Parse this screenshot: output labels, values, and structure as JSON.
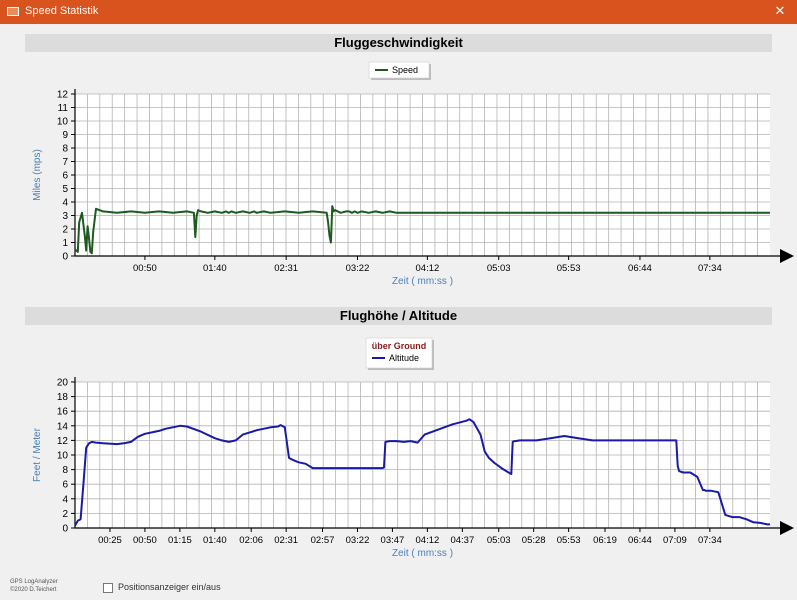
{
  "window": {
    "title": "Speed Statistik",
    "close_glyph": "✕",
    "icon": "window-icon"
  },
  "footer": {
    "brand": "GPS LogAnalyzer",
    "copyright": "©2020 D.Teichert",
    "checkbox_label": "Positionsanzeiger ein/aus",
    "checkbox_checked": false
  },
  "chart_data": [
    {
      "type": "line",
      "title": "Fluggeschwindigkeit",
      "xlabel": "Zeit ( mm:ss )",
      "ylabel": "Miles (mps)",
      "ylim": [
        0,
        12
      ],
      "yticks": [
        0,
        1,
        2,
        3,
        4,
        5,
        6,
        7,
        8,
        9,
        10,
        11,
        12
      ],
      "xlim": [
        0,
        497
      ],
      "xtick_labels": [
        {
          "t": 50,
          "label": "00:50"
        },
        {
          "t": 100,
          "label": "01:40"
        },
        {
          "t": 151,
          "label": "02:31"
        },
        {
          "t": 202,
          "label": "03:22"
        },
        {
          "t": 252,
          "label": "04:12"
        },
        {
          "t": 303,
          "label": "05:03"
        },
        {
          "t": 353,
          "label": "05:53"
        },
        {
          "t": 404,
          "label": "06:44"
        },
        {
          "t": 454,
          "label": "07:34"
        }
      ],
      "grid": true,
      "legend": {
        "placement": "top-center",
        "items": [
          "Speed"
        ]
      },
      "series": [
        {
          "name": "Speed",
          "color": "#1e5a1e",
          "x": [
            0,
            2,
            3,
            5,
            7,
            8,
            9,
            10,
            11,
            12,
            13,
            15,
            20,
            30,
            40,
            50,
            60,
            70,
            80,
            85,
            86,
            87,
            88,
            90,
            95,
            100,
            105,
            108,
            110,
            112,
            115,
            120,
            125,
            128,
            130,
            135,
            140,
            150,
            160,
            170,
            180,
            181,
            182,
            183,
            184,
            185,
            186,
            190,
            194,
            196,
            198,
            200,
            202,
            205,
            210,
            215,
            220,
            225,
            230,
            240,
            250,
            260,
            270,
            280,
            290,
            300,
            301,
            302,
            303,
            304,
            305,
            306,
            308,
            310,
            313,
            314,
            315,
            316,
            317,
            318,
            320,
            325,
            330,
            335,
            340,
            345,
            350,
            355,
            360,
            365,
            370,
            375,
            380,
            385,
            390,
            395,
            400,
            402,
            404,
            406,
            408,
            410,
            415,
            420,
            425,
            430,
            432,
            434,
            436,
            438,
            440,
            442,
            444,
            446,
            448,
            450,
            452,
            454,
            456,
            458,
            460,
            462,
            464,
            466,
            468,
            470,
            475,
            480,
            485,
            490,
            495,
            497
          ],
          "y": [
            0.5,
            0.3,
            2.5,
            3.2,
            1.5,
            0.4,
            2.2,
            1.3,
            0.3,
            0.2,
            1.8,
            3.5,
            3.3,
            3.2,
            3.3,
            3.2,
            3.3,
            3.2,
            3.3,
            3.2,
            1.4,
            3.0,
            3.4,
            3.3,
            3.2,
            3.3,
            3.2,
            3.3,
            3.2,
            3.3,
            3.2,
            3.3,
            3.2,
            3.3,
            3.2,
            3.3,
            3.2,
            3.3,
            3.2,
            3.3,
            3.2,
            2.5,
            1.5,
            1.0,
            3.7,
            3.3,
            3.4,
            3.2,
            3.3,
            3.3,
            3.2,
            3.3,
            3.2,
            3.3,
            3.2,
            3.3,
            3.2,
            3.3,
            3.2,
            3.2,
            3.2,
            3.2,
            3.2,
            3.2,
            3.2,
            3.2,
            3.2,
            3.2,
            3.2,
            3.2,
            3.2,
            3.2,
            3.2,
            3.2,
            3.2,
            3.2,
            3.2,
            3.2,
            3.2,
            3.2,
            3.2,
            3.2,
            3.2,
            3.2,
            3.2,
            3.2,
            3.2,
            3.2,
            3.2,
            3.2,
            3.2,
            3.2,
            3.2,
            3.2,
            3.2,
            3.2,
            3.2,
            3.2,
            3.2,
            3.2,
            3.2,
            3.2,
            3.2,
            3.2,
            3.2,
            3.2,
            3.2,
            3.2,
            3.2,
            3.2,
            3.2,
            3.2,
            3.2,
            3.2,
            3.2,
            3.2,
            3.2,
            3.2,
            3.2,
            3.2,
            3.2,
            3.2,
            3.2,
            3.2,
            3.2,
            3.2,
            3.2,
            3.2,
            3.2,
            3.2,
            3.2,
            3.2
          ]
        }
      ]
    },
    {
      "type": "line",
      "title": "Flughöhe / Altitude",
      "xlabel": "Zeit ( mm:ss )",
      "ylabel": "Feet / Meter",
      "ylim": [
        0,
        20
      ],
      "yticks": [
        0,
        2,
        4,
        6,
        8,
        10,
        12,
        14,
        16,
        18,
        20
      ],
      "xlim": [
        0,
        497
      ],
      "xtick_labels": [
        {
          "t": 25,
          "label": "00:25"
        },
        {
          "t": 50,
          "label": "00:50"
        },
        {
          "t": 75,
          "label": "01:15"
        },
        {
          "t": 100,
          "label": "01:40"
        },
        {
          "t": 126,
          "label": "02:06"
        },
        {
          "t": 151,
          "label": "02:31"
        },
        {
          "t": 177,
          "label": "02:57"
        },
        {
          "t": 202,
          "label": "03:22"
        },
        {
          "t": 227,
          "label": "03:47"
        },
        {
          "t": 252,
          "label": "04:12"
        },
        {
          "t": 277,
          "label": "04:37"
        },
        {
          "t": 303,
          "label": "05:03"
        },
        {
          "t": 328,
          "label": "05:28"
        },
        {
          "t": 353,
          "label": "05:53"
        },
        {
          "t": 379,
          "label": "06:19"
        },
        {
          "t": 404,
          "label": "06:44"
        },
        {
          "t": 429,
          "label": "07:09"
        },
        {
          "t": 454,
          "label": "07:34"
        }
      ],
      "grid": true,
      "legend": {
        "placement": "top-center",
        "heading": "über Ground",
        "items": [
          "Altitude"
        ]
      },
      "series": [
        {
          "name": "Altitude",
          "color": "#1a1aa8",
          "x": [
            0,
            2,
            4,
            6,
            8,
            10,
            12,
            15,
            20,
            30,
            35,
            40,
            45,
            50,
            55,
            60,
            65,
            70,
            75,
            80,
            90,
            100,
            105,
            110,
            115,
            120,
            130,
            140,
            145,
            146,
            147,
            148,
            150,
            153,
            156,
            160,
            165,
            170,
            180,
            190,
            200,
            210,
            215,
            220,
            221,
            222,
            225,
            230,
            235,
            240,
            245,
            250,
            260,
            270,
            280,
            282,
            285,
            290,
            293,
            296,
            300,
            305,
            310,
            312,
            313,
            314,
            315,
            318,
            320,
            325,
            330,
            340,
            350,
            360,
            370,
            380,
            390,
            400,
            410,
            420,
            425,
            428,
            430,
            431,
            432,
            435,
            440,
            445,
            449,
            450,
            451,
            455,
            460,
            465,
            470,
            475,
            480,
            485,
            490,
            495,
            497
          ],
          "y": [
            0.3,
            1,
            1.2,
            6,
            11,
            11.6,
            11.8,
            11.7,
            11.6,
            11.5,
            11.6,
            11.8,
            12.5,
            12.9,
            13.1,
            13.3,
            13.6,
            13.8,
            14.0,
            13.9,
            13.2,
            12.3,
            12.0,
            11.8,
            12.0,
            12.8,
            13.4,
            13.8,
            13.9,
            14.0,
            14.1,
            14.0,
            13.8,
            9.6,
            9.3,
            9.0,
            8.8,
            8.2,
            8.2,
            8.2,
            8.2,
            8.2,
            8.2,
            8.2,
            8.3,
            11.8,
            11.9,
            11.9,
            11.8,
            11.9,
            11.7,
            12.8,
            13.5,
            14.2,
            14.7,
            14.9,
            14.5,
            12.8,
            10.5,
            9.6,
            8.9,
            8.2,
            7.6,
            7.4,
            11.8,
            11.9,
            11.9,
            12.0,
            12.0,
            12.0,
            12.0,
            12.3,
            12.6,
            12.3,
            12.0,
            12.0,
            12.0,
            12.0,
            12.0,
            12.0,
            12.0,
            12.0,
            12.0,
            8.5,
            7.8,
            7.6,
            7.6,
            7.0,
            5.2,
            5.2,
            5.1,
            5.1,
            4.9,
            1.8,
            1.5,
            1.5,
            1.2,
            0.8,
            0.7,
            0.5,
            0.5
          ]
        }
      ]
    }
  ]
}
